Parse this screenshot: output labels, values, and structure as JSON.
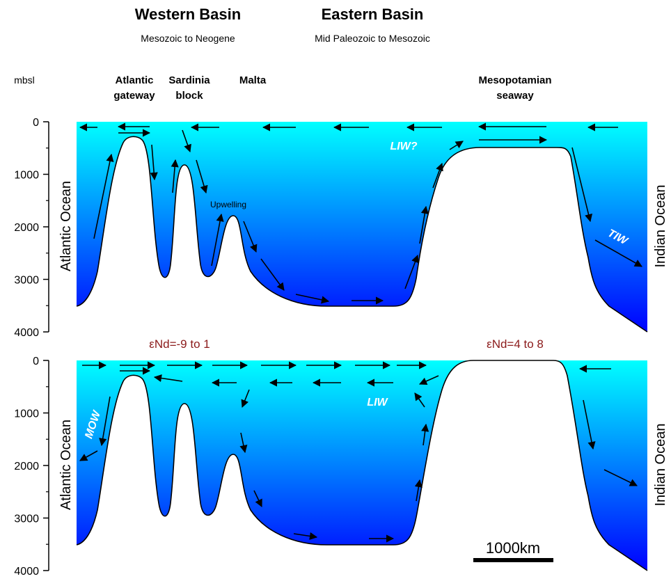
{
  "header": {
    "western": {
      "title": "Western Basin",
      "subtitle": "Mesozoic to Neogene"
    },
    "eastern": {
      "title": "Eastern Basin",
      "subtitle": "Mid Paleozoic to Mesozoic"
    }
  },
  "axis_label": "mbsl",
  "locations": [
    {
      "lines": [
        "Atlantic",
        "gateway"
      ]
    },
    {
      "lines": [
        "Sardinia",
        "block"
      ]
    },
    {
      "lines": [
        "Malta"
      ]
    },
    {
      "lines": [
        "Mesopotamian",
        "seaway"
      ]
    }
  ],
  "panels": [
    {
      "yticks": [
        0,
        1000,
        2000,
        3000,
        4000
      ],
      "left_label": "Atlantic Ocean",
      "right_label": "Indian Ocean",
      "annotations": [
        "Upwelling",
        "LIW?",
        "TIW"
      ]
    },
    {
      "yticks": [
        0,
        1000,
        2000,
        3000,
        4000
      ],
      "left_label": "Atlantic Ocean",
      "right_label": "Indian Ocean",
      "annotations": [
        "MOW",
        "LIW"
      ]
    }
  ],
  "epsilon_labels": [
    "εNd=-9 to 1",
    "εNd=4 to 8"
  ],
  "scale_bar": "1000km"
}
